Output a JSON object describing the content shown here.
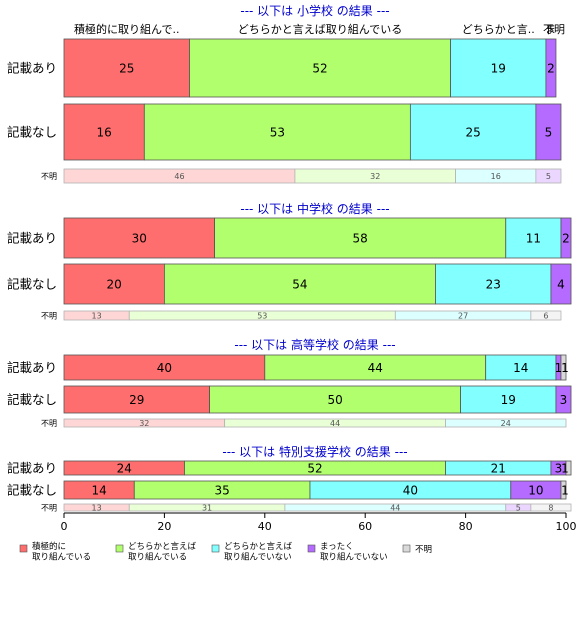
{
  "chart_data": {
    "type": "bar",
    "orientation": "horizontal-stacked",
    "xlim": [
      0,
      100
    ],
    "x_ticks": [
      "0",
      "20",
      "40",
      "60",
      "80",
      "100"
    ],
    "grid": false,
    "legend_position": "bottom-left",
    "series": [
      {
        "name": "積極的に\n取り組んでいる",
        "color": "#ff6e6e"
      },
      {
        "name": "どちらかと言えば\n取り組んでいる",
        "color": "#b2ff6e"
      },
      {
        "name": "どちらかと言えば\n取り組んでいない",
        "color": "#82ffff"
      },
      {
        "name": "まったく\n取り組んでいない",
        "color": "#b56bff"
      },
      {
        "name": "不明",
        "color": "#d9d9d9"
      }
    ],
    "top_labels": [
      "積極的に取り組んで..",
      "どちらかと言えば取り組んでいる",
      "どちらかと言..",
      "ま",
      "不明"
    ],
    "panels": [
      {
        "title": "--- 以下は 小学校 の結果 ---",
        "rows": [
          {
            "label": "記載あり",
            "values": [
              25,
              52,
              19,
              2,
              0
            ],
            "value_labels": [
              "25",
              "52",
              "19",
              "2",
              ""
            ]
          },
          {
            "label": "記載なし",
            "values": [
              16,
              53,
              25,
              5,
              0
            ],
            "value_labels": [
              "16",
              "53",
              "25",
              "5",
              ""
            ]
          }
        ],
        "unknown": {
          "label": "不明",
          "values": [
            46,
            32,
            16,
            5,
            0
          ],
          "value_labels": [
            "46",
            "32",
            "16",
            "5",
            ""
          ]
        }
      },
      {
        "title": "--- 以下は 中学校 の結果 ---",
        "rows": [
          {
            "label": "記載あり",
            "values": [
              30,
              58,
              11,
              2,
              0
            ],
            "value_labels": [
              "30",
              "58",
              "11",
              "2",
              ""
            ]
          },
          {
            "label": "記載なし",
            "values": [
              20,
              54,
              23,
              4,
              0
            ],
            "value_labels": [
              "20",
              "54",
              "23",
              "4",
              ""
            ]
          }
        ],
        "unknown": {
          "label": "不明",
          "values": [
            13,
            53,
            27,
            0,
            6
          ],
          "value_labels": [
            "13",
            "53",
            "27",
            "",
            "6"
          ]
        }
      },
      {
        "title": "--- 以下は 高等学校 の結果 ---",
        "rows": [
          {
            "label": "記載あり",
            "values": [
              40,
              44,
              14,
              1,
              1
            ],
            "value_labels": [
              "40",
              "44",
              "14",
              "1",
              "1"
            ]
          },
          {
            "label": "記載なし",
            "values": [
              29,
              50,
              19,
              3,
              0
            ],
            "value_labels": [
              "29",
              "50",
              "19",
              "3",
              ""
            ]
          }
        ],
        "unknown": {
          "label": "不明",
          "values": [
            32,
            44,
            24,
            0,
            0
          ],
          "value_labels": [
            "32",
            "44",
            "24",
            "",
            ""
          ]
        }
      },
      {
        "title": "--- 以下は 特別支援学校 の結果 ---",
        "rows": [
          {
            "label": "記載あり",
            "values": [
              24,
              52,
              21,
              3,
              1
            ],
            "value_labels": [
              "24",
              "52",
              "21",
              "3",
              "1"
            ]
          },
          {
            "label": "記載なし",
            "values": [
              14,
              35,
              40,
              10,
              1
            ],
            "value_labels": [
              "14",
              "35",
              "40",
              "10",
              "1"
            ]
          }
        ],
        "unknown": {
          "label": "不明",
          "values": [
            13,
            31,
            44,
            5,
            8
          ],
          "value_labels": [
            "13",
            "31",
            "44",
            "5",
            "8"
          ]
        }
      }
    ]
  }
}
